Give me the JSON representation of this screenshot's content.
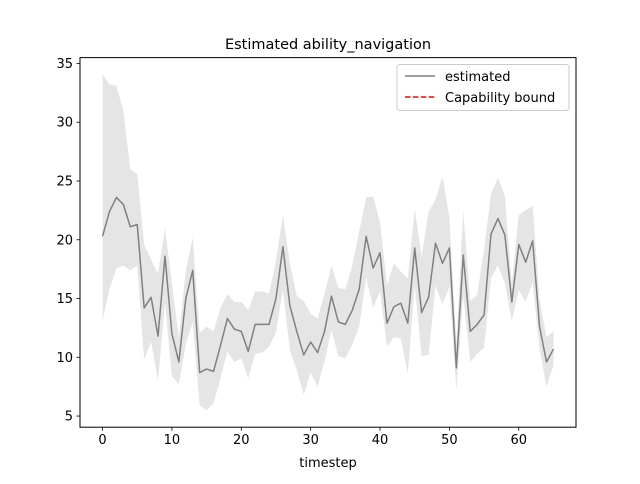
{
  "chart_data": {
    "type": "line",
    "title": "Estimated ability_navigation",
    "xlabel": "timestep",
    "ylabel": "",
    "xlim": [
      -3.25,
      68.25
    ],
    "ylim": [
      4.05,
      35.5
    ],
    "xticks": [
      0,
      10,
      20,
      30,
      40,
      50,
      60
    ],
    "yticks": [
      5,
      10,
      15,
      20,
      25,
      30,
      35
    ],
    "grid": false,
    "legend_position": "top-right",
    "legend": [
      {
        "label": "estimated",
        "color": "#808080",
        "style": "solid"
      },
      {
        "label": "Capability bound",
        "color": "#ff0000",
        "style": "dashed"
      }
    ],
    "series": [
      {
        "name": "estimated",
        "color": "#808080",
        "x": [
          0,
          1,
          2,
          3,
          4,
          5,
          6,
          7,
          8,
          9,
          10,
          11,
          12,
          13,
          14,
          15,
          16,
          17,
          18,
          19,
          20,
          21,
          22,
          23,
          24,
          25,
          26,
          27,
          28,
          29,
          30,
          31,
          32,
          33,
          34,
          35,
          36,
          37,
          38,
          39,
          40,
          41,
          42,
          43,
          44,
          45,
          46,
          47,
          48,
          49,
          50,
          51,
          52,
          53,
          54,
          55,
          56,
          57,
          58,
          59,
          60,
          61,
          62,
          63,
          64,
          65
        ],
        "y": [
          20.3,
          22.4,
          23.6,
          23.0,
          21.1,
          21.3,
          14.2,
          15.1,
          11.8,
          18.6,
          12.0,
          9.6,
          15.0,
          17.4,
          8.7,
          9.0,
          8.8,
          11.0,
          13.3,
          12.4,
          12.2,
          10.5,
          12.8,
          12.8,
          12.8,
          15.0,
          19.4,
          14.4,
          12.2,
          10.2,
          11.3,
          10.4,
          12.2,
          15.2,
          13.0,
          12.8,
          14.0,
          15.8,
          20.3,
          17.6,
          18.9,
          12.9,
          14.3,
          14.6,
          12.9,
          19.3,
          13.8,
          15.1,
          19.7,
          18.0,
          19.3,
          9.1,
          18.7,
          12.2,
          12.8,
          13.6,
          20.5,
          21.8,
          20.4,
          14.7,
          19.6,
          18.1,
          19.9,
          12.6,
          9.6,
          10.7
        ],
        "lower": [
          13.1,
          15.8,
          17.6,
          17.8,
          17.4,
          17.8,
          9.8,
          11.3,
          8.0,
          14.6,
          8.4,
          7.7,
          11.1,
          13.0,
          5.9,
          5.5,
          6.1,
          8.2,
          10.5,
          9.6,
          9.9,
          8.2,
          10.3,
          10.4,
          10.9,
          12.1,
          15.7,
          10.6,
          8.9,
          6.8,
          8.7,
          7.5,
          9.7,
          12.3,
          10.1,
          9.9,
          11.1,
          12.6,
          16.8,
          14.2,
          15.6,
          10.9,
          11.7,
          11.6,
          8.6,
          16.1,
          10.1,
          10.2,
          16.1,
          14.5,
          16.0,
          7.2,
          15.2,
          9.6,
          10.3,
          10.8,
          16.7,
          17.8,
          16.3,
          13.1,
          15.7,
          14.7,
          16.4,
          10.7,
          7.5,
          9.3
        ],
        "upper": [
          34.1,
          33.2,
          33.1,
          31.0,
          26.0,
          25.6,
          19.6,
          18.3,
          17.1,
          21.0,
          16.3,
          11.7,
          17.4,
          20.2,
          12.1,
          12.6,
          12.2,
          14.2,
          15.4,
          14.7,
          14.7,
          14.0,
          15.6,
          15.6,
          15.4,
          18.2,
          22.1,
          18.0,
          15.2,
          14.8,
          13.7,
          13.3,
          15.4,
          17.8,
          15.9,
          15.8,
          17.8,
          20.7,
          23.6,
          23.7,
          21.5,
          16.1,
          18.0,
          17.3,
          16.7,
          22.6,
          18.6,
          22.4,
          23.4,
          25.4,
          21.9,
          11.2,
          22.5,
          14.8,
          15.3,
          19.2,
          23.9,
          25.3,
          23.7,
          16.3,
          22.1,
          22.5,
          22.9,
          14.9,
          11.7,
          12.2
        ]
      },
      {
        "name": "Capability bound",
        "color": "#ff0000",
        "x": [],
        "y": []
      }
    ]
  }
}
